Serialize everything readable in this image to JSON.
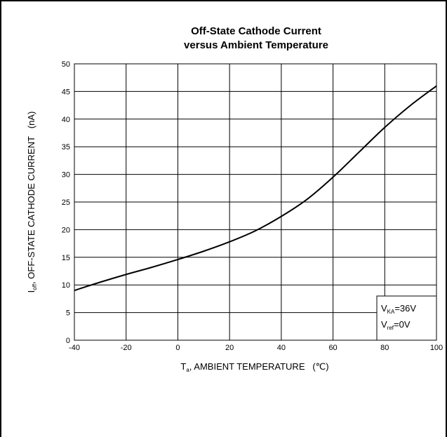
{
  "chart_data": {
    "type": "line",
    "title_lines": [
      "Off-State Cathode Current",
      "versus Ambient Temperature"
    ],
    "xlabel": {
      "prefix": "T",
      "sub": "a",
      "rest": ", AMBIENT TEMPERATURE   (℃)"
    },
    "ylabel": {
      "prefix": "I",
      "sub": "off",
      "rest": ", OFF-STATE CATHODE CURRENT   (nA)"
    },
    "xlim": [
      -40,
      100
    ],
    "ylim": [
      0,
      50
    ],
    "xticks": [
      -40,
      -20,
      0,
      20,
      40,
      60,
      80,
      100
    ],
    "yticks": [
      0,
      5,
      10,
      15,
      20,
      25,
      30,
      35,
      40,
      45,
      50
    ],
    "grid": true,
    "series": [
      {
        "x": [
          -40,
          -30,
          -20,
          -10,
          0,
          10,
          20,
          30,
          40,
          50,
          60,
          70,
          80,
          90,
          100
        ],
        "y": [
          9.0,
          10.5,
          11.9,
          13.2,
          14.6,
          16.1,
          17.8,
          19.8,
          22.4,
          25.5,
          29.5,
          34.0,
          38.5,
          42.5,
          46.0
        ]
      }
    ],
    "annotations": [
      {
        "prefix": "V",
        "sub": "KA",
        "rest": "=36V"
      },
      {
        "prefix": "V",
        "sub": "ref",
        "rest": "=0V"
      }
    ]
  }
}
